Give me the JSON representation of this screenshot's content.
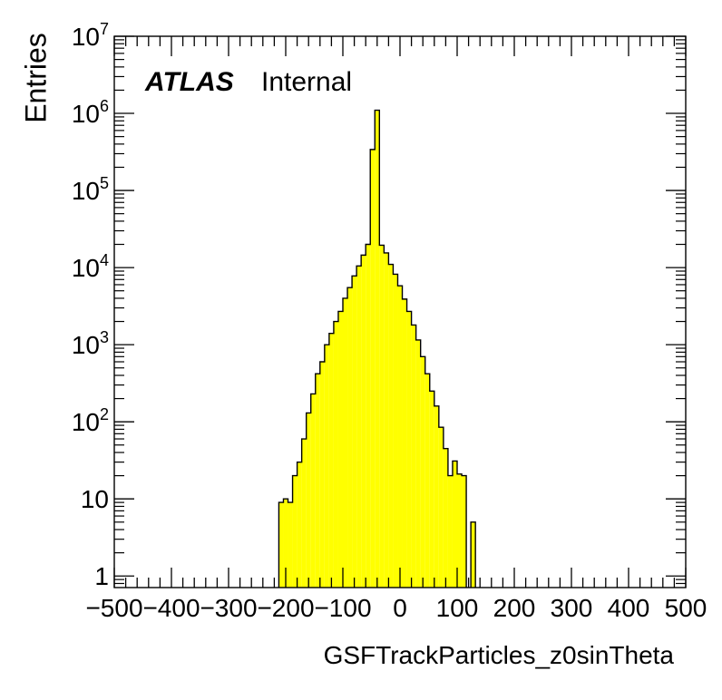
{
  "chart_data": {
    "type": "bar",
    "title": "",
    "xlabel": "GSFTrackParticles_z0sinTheta",
    "ylabel": "Entries",
    "xlim": [
      -500,
      500
    ],
    "ylim_log10": [
      -0.15,
      7
    ],
    "y_scale": "log",
    "legend": {
      "atlas": "ATLAS",
      "internal": "Internal",
      "placement": "top-left"
    },
    "x_ticks": [
      {
        "value": -500,
        "label": "−500"
      },
      {
        "value": -400,
        "label": "−400"
      },
      {
        "value": -300,
        "label": "−300"
      },
      {
        "value": -200,
        "label": "−200"
      },
      {
        "value": -100,
        "label": "−100"
      },
      {
        "value": 0,
        "label": "0"
      },
      {
        "value": 100,
        "label": "100"
      },
      {
        "value": 200,
        "label": "200"
      },
      {
        "value": 300,
        "label": "300"
      },
      {
        "value": 400,
        "label": "400"
      },
      {
        "value": 500,
        "label": "500"
      }
    ],
    "y_ticks": [
      {
        "value": 1,
        "label": "1"
      },
      {
        "value": 10,
        "label": "10"
      },
      {
        "value": 100,
        "base": "10",
        "exp": "2"
      },
      {
        "value": 1000,
        "base": "10",
        "exp": "3"
      },
      {
        "value": 10000,
        "base": "10",
        "exp": "4"
      },
      {
        "value": 100000,
        "base": "10",
        "exp": "5"
      },
      {
        "value": 1000000,
        "base": "10",
        "exp": "6"
      },
      {
        "value": 10000000,
        "base": "10",
        "exp": "7"
      }
    ],
    "bins": [
      {
        "x0": -212,
        "x1": -204,
        "value": 9
      },
      {
        "x0": -204,
        "x1": -196,
        "value": 10
      },
      {
        "x0": -196,
        "x1": -188,
        "value": 9
      },
      {
        "x0": -188,
        "x1": -180,
        "value": 20
      },
      {
        "x0": -180,
        "x1": -172,
        "value": 30
      },
      {
        "x0": -172,
        "x1": -164,
        "value": 60
      },
      {
        "x0": -164,
        "x1": -156,
        "value": 130
      },
      {
        "x0": -156,
        "x1": -148,
        "value": 230
      },
      {
        "x0": -148,
        "x1": -140,
        "value": 420
      },
      {
        "x0": -140,
        "x1": -132,
        "value": 600
      },
      {
        "x0": -132,
        "x1": -124,
        "value": 1000
      },
      {
        "x0": -124,
        "x1": -116,
        "value": 1400
      },
      {
        "x0": -116,
        "x1": -108,
        "value": 2000
      },
      {
        "x0": -108,
        "x1": -100,
        "value": 2700
      },
      {
        "x0": -100,
        "x1": -92,
        "value": 4000
      },
      {
        "x0": -92,
        "x1": -84,
        "value": 5500
      },
      {
        "x0": -84,
        "x1": -76,
        "value": 7800
      },
      {
        "x0": -76,
        "x1": -68,
        "value": 10500
      },
      {
        "x0": -68,
        "x1": -60,
        "value": 14500
      },
      {
        "x0": -60,
        "x1": -52,
        "value": 20000
      },
      {
        "x0": -52,
        "x1": -44,
        "value": 340000
      },
      {
        "x0": -44,
        "x1": -36,
        "value": 1100000
      },
      {
        "x0": -36,
        "x1": -28,
        "value": 19500
      },
      {
        "x0": -28,
        "x1": -20,
        "value": 15500
      },
      {
        "x0": -20,
        "x1": -12,
        "value": 11000
      },
      {
        "x0": -12,
        "x1": -4,
        "value": 8200
      },
      {
        "x0": -4,
        "x1": 4,
        "value": 5800
      },
      {
        "x0": 4,
        "x1": 12,
        "value": 3900
      },
      {
        "x0": 12,
        "x1": 20,
        "value": 2700
      },
      {
        "x0": 20,
        "x1": 28,
        "value": 1800
      },
      {
        "x0": 28,
        "x1": 36,
        "value": 1150
      },
      {
        "x0": 36,
        "x1": 44,
        "value": 700
      },
      {
        "x0": 44,
        "x1": 52,
        "value": 420
      },
      {
        "x0": 52,
        "x1": 60,
        "value": 250
      },
      {
        "x0": 60,
        "x1": 68,
        "value": 160
      },
      {
        "x0": 68,
        "x1": 76,
        "value": 85
      },
      {
        "x0": 76,
        "x1": 84,
        "value": 45
      },
      {
        "x0": 84,
        "x1": 92,
        "value": 20
      },
      {
        "x0": 92,
        "x1": 100,
        "value": 31
      },
      {
        "x0": 100,
        "x1": 108,
        "value": 21
      },
      {
        "x0": 108,
        "x1": 116,
        "value": 20
      },
      {
        "x0": 124,
        "x1": 132,
        "value": 5
      }
    ]
  }
}
